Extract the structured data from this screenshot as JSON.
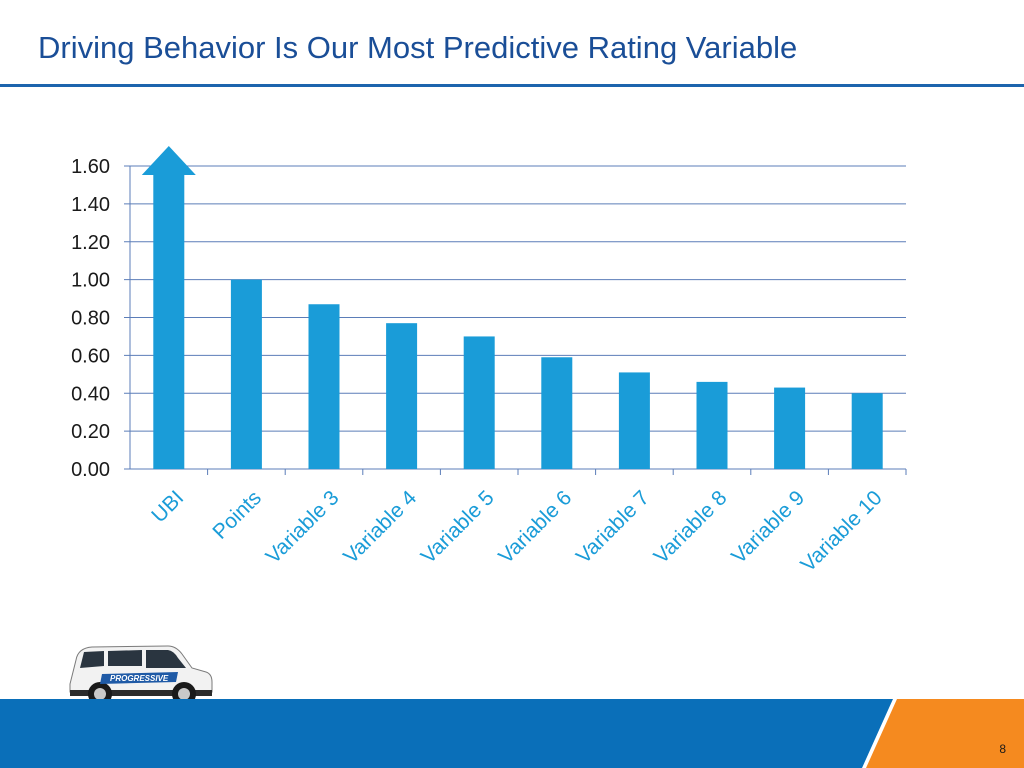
{
  "slide": {
    "title": "Driving Behavior Is Our Most Predictive Rating Variable",
    "page_number": "8"
  },
  "logo": {
    "text": "PROGRESSIVE"
  },
  "colors": {
    "title": "#1a4e97",
    "bar": "#1a9cd8",
    "gridline": "#5b7db8",
    "footer_blue": "#0a6fb9",
    "footer_orange": "#f58a1f"
  },
  "chart_data": {
    "type": "bar",
    "categories": [
      "UBI",
      "Points",
      "Variable 3",
      "Variable 4",
      "Variable 5",
      "Variable 6",
      "Variable 7",
      "Variable 8",
      "Variable 9",
      "Variable 10"
    ],
    "values": [
      1.6,
      1.0,
      0.87,
      0.77,
      0.7,
      0.59,
      0.51,
      0.46,
      0.43,
      0.4
    ],
    "ylim": [
      0,
      1.6
    ],
    "yticks": [
      "0.00",
      "0.20",
      "0.40",
      "0.60",
      "0.80",
      "1.00",
      "1.20",
      "1.40",
      "1.60"
    ],
    "ytick_values": [
      0,
      0.2,
      0.4,
      0.6,
      0.8,
      1.0,
      1.2,
      1.4,
      1.6
    ],
    "grid": true,
    "annotations": [
      "UBI bar capped with upward arrow (value exceeds axis maximum)"
    ],
    "xlabel": "",
    "ylabel": ""
  }
}
